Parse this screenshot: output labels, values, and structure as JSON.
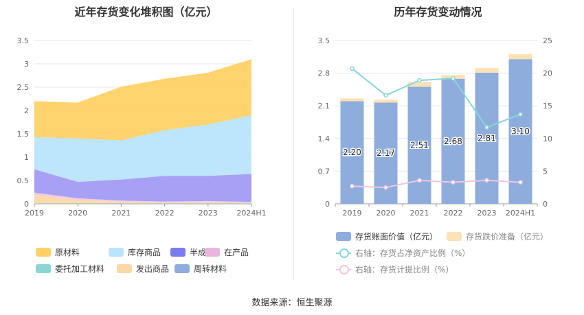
{
  "left_title": "近年存货变化堆积图（亿元）",
  "right_title": "历年存货变动情况",
  "source": "数据来源：恒生聚源",
  "colors": {
    "原材料": "#ffd166",
    "库存商品": "#b9e4fb",
    "半成品": "#a29bf4",
    "在产品": "#f1c6e0",
    "委托加工材料": "#8ad6d3",
    "发出商品": "#fbd9a5",
    "周转材料": "#8eaddd",
    "bar_main": "#8eaddd",
    "bar_top": "#fde2b5",
    "line1": "#88d6d8",
    "line2": "#f1c6e0"
  },
  "legend_left": [
    "原材料",
    "库存商品",
    "半成品",
    "在产品",
    "委托加工材料",
    "发出商品",
    "周转材料"
  ],
  "legend_right": {
    "bar1": "存货账面价值（亿元）",
    "bar2": "存货跌价准备（亿元）",
    "line1": "右轴：存货占净资产比例（%）",
    "line2": "右轴：存货计提比例（%）"
  },
  "chart_data": [
    {
      "type": "area",
      "title": "近年存货变化堆积图（亿元）",
      "stacked": true,
      "x": [
        "2019",
        "2020",
        "2021",
        "2022",
        "2023",
        "2024H1"
      ],
      "ylim": [
        0,
        3.5
      ],
      "yticks": [
        "0",
        "0.5",
        "1",
        "1.5",
        "2",
        "2.5",
        "3",
        "3.5"
      ],
      "series": [
        {
          "name": "周转材料",
          "values": [
            0.01,
            0.01,
            0.01,
            0.01,
            0.01,
            0.01
          ]
        },
        {
          "name": "发出商品",
          "values": [
            0.18,
            0.08,
            0.04,
            0.02,
            0.03,
            0.01
          ]
        },
        {
          "name": "委托加工材料",
          "values": [
            0.0,
            0.0,
            0.0,
            0.0,
            0.0,
            0.0
          ]
        },
        {
          "name": "在产品",
          "values": [
            0.05,
            0.03,
            0.02,
            0.02,
            0.02,
            0.02
          ]
        },
        {
          "name": "半成品",
          "values": [
            0.5,
            0.35,
            0.45,
            0.55,
            0.54,
            0.6
          ]
        },
        {
          "name": "库存商品",
          "values": [
            0.69,
            0.93,
            0.84,
            0.98,
            1.1,
            1.26
          ]
        },
        {
          "name": "原材料",
          "values": [
            0.77,
            0.77,
            1.15,
            1.1,
            1.11,
            1.2
          ]
        }
      ],
      "grid": true,
      "legend_position": "bottom"
    },
    {
      "type": "bar",
      "title": "历年存货变动情况",
      "categories": [
        "2019",
        "2020",
        "2021",
        "2022",
        "2023",
        "2024H1"
      ],
      "ylim": [
        0,
        3.5
      ],
      "yticks": [
        "0",
        "0.7",
        "1.4",
        "2.1",
        "2.8",
        "3.5"
      ],
      "y2lim": [
        0,
        25
      ],
      "y2ticks": [
        "0",
        "5",
        "10",
        "15",
        "20",
        "25"
      ],
      "series": [
        {
          "name": "存货账面价值（亿元）",
          "type": "bar",
          "values": [
            2.2,
            2.17,
            2.51,
            2.68,
            2.81,
            3.1
          ],
          "labels": [
            "2.20",
            "2.17",
            "2.51",
            "2.68",
            "2.81",
            "3.10"
          ]
        },
        {
          "name": "存货跌价准备（亿元）",
          "type": "bar",
          "values": [
            0.06,
            0.06,
            0.1,
            0.08,
            0.1,
            0.11
          ]
        },
        {
          "name": "右轴：存货占净资产比例（%）",
          "type": "line",
          "axis": "right",
          "values": [
            20.7,
            16.6,
            18.9,
            19.2,
            11.7,
            13.7
          ]
        },
        {
          "name": "右轴：存货计提比例（%）",
          "type": "line",
          "axis": "right",
          "values": [
            2.7,
            2.5,
            3.6,
            3.3,
            3.6,
            3.3
          ]
        }
      ],
      "grid": true,
      "legend_position": "bottom"
    }
  ]
}
